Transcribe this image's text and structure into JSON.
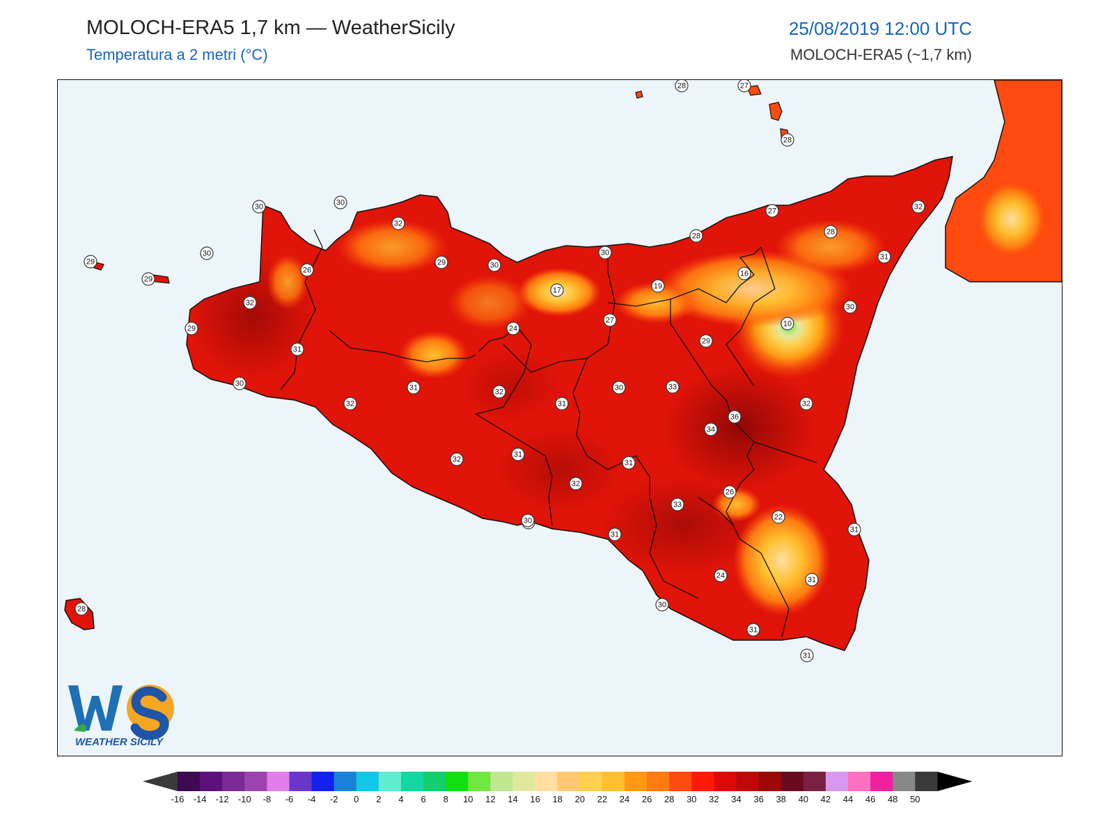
{
  "header": {
    "title": "MOLOCH-ERA5 1,7 km — WeatherSicily",
    "subtitle": "Temperatura a 2 metri (°C)",
    "datetime": "25/08/2019 12:00 UTC",
    "model": "MOLOCH-ERA5 (~1,7 km)"
  },
  "logo": {
    "name": "WeatherSicily",
    "text": "WEATHER SICILY"
  },
  "colors": {
    "sea": "#ecf5fa",
    "land_base": "#e01408",
    "label_fill": "#ffffff"
  },
  "station_labels": [
    {
      "value": "28"
    },
    {
      "value": "27"
    },
    {
      "value": "28"
    },
    {
      "value": "30"
    },
    {
      "value": "30"
    },
    {
      "value": "32"
    },
    {
      "value": "29"
    },
    {
      "value": "30"
    },
    {
      "value": "26"
    },
    {
      "value": "29"
    },
    {
      "value": "32"
    },
    {
      "value": "29"
    },
    {
      "value": "31"
    },
    {
      "value": "30"
    },
    {
      "value": "32"
    },
    {
      "value": "29"
    },
    {
      "value": "30"
    },
    {
      "value": "30"
    },
    {
      "value": "31"
    },
    {
      "value": "32"
    },
    {
      "value": "31"
    },
    {
      "value": "32"
    },
    {
      "value": "30"
    },
    {
      "value": "17"
    },
    {
      "value": "24"
    },
    {
      "value": "27"
    },
    {
      "value": "30"
    },
    {
      "value": "28"
    },
    {
      "value": "19"
    },
    {
      "value": "27"
    },
    {
      "value": "16"
    },
    {
      "value": "28"
    },
    {
      "value": "32"
    },
    {
      "value": "31"
    },
    {
      "value": "30"
    },
    {
      "value": "10"
    },
    {
      "value": "29"
    },
    {
      "value": "33"
    },
    {
      "value": "36"
    },
    {
      "value": "34"
    },
    {
      "value": "32"
    },
    {
      "value": "31"
    },
    {
      "value": "32"
    },
    {
      "value": "31"
    },
    {
      "value": "30"
    },
    {
      "value": "31"
    },
    {
      "value": "33"
    },
    {
      "value": "26"
    },
    {
      "value": "22"
    },
    {
      "value": "31"
    },
    {
      "value": "24"
    },
    {
      "value": "31"
    },
    {
      "value": "30"
    },
    {
      "value": "31"
    },
    {
      "value": "31"
    },
    {
      "value": "28"
    }
  ],
  "colorbar": {
    "ticks": [
      "-16",
      "-14",
      "-12",
      "-10",
      "-8",
      "-6",
      "-4",
      "-2",
      "0",
      "2",
      "4",
      "6",
      "8",
      "10",
      "12",
      "14",
      "16",
      "18",
      "20",
      "22",
      "24",
      "26",
      "28",
      "30",
      "32",
      "34",
      "36",
      "38",
      "40",
      "42",
      "44",
      "46",
      "48",
      "50"
    ],
    "colors": [
      "#3d0a52",
      "#5a127a",
      "#7a2a96",
      "#9c45b0",
      "#e07ee8",
      "#6a35c8",
      "#1220f0",
      "#1a80d8",
      "#10c8e8",
      "#60eccf",
      "#10d8a0",
      "#10d070",
      "#10e010",
      "#70e840",
      "#bfe890",
      "#e0e8a0",
      "#ffe0a0",
      "#ffc870",
      "#ffd050",
      "#ffc030",
      "#ff9a10",
      "#ff7a10",
      "#ff4a10",
      "#ff1a08",
      "#e00808",
      "#c00808",
      "#9a0808",
      "#6a0a20",
      "#7a2040",
      "#d898f0",
      "#ff70c0",
      "#f020a0",
      "#888888",
      "#3a3a3a"
    ],
    "under_color": "#3a3a3a",
    "over_color": "#000000"
  }
}
